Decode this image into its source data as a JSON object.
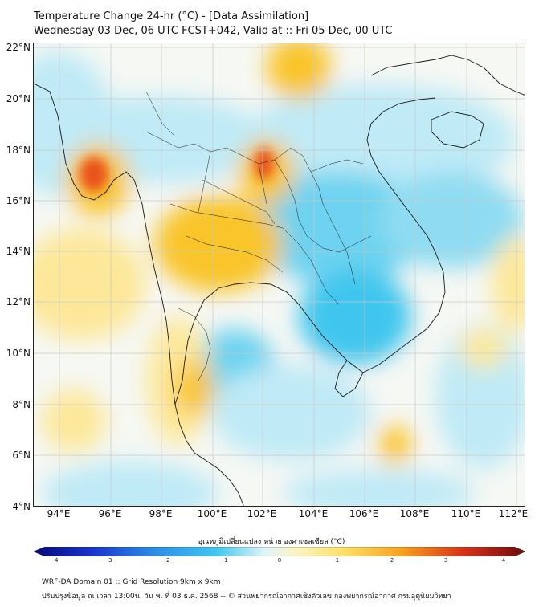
{
  "header": {
    "title_line1": "Temperature Change 24-hr (°C) - [Data Assimilation]",
    "title_line2": "Wednesday 03 Dec, 06 UTC FCST+042, Valid at :: Fri 05 Dec, 00 UTC"
  },
  "map": {
    "lat_labels": [
      "22°N",
      "20°N",
      "18°N",
      "16°N",
      "14°N",
      "12°N",
      "10°N",
      "8°N",
      "6°N",
      "4°N"
    ],
    "lon_labels": [
      "94°E",
      "96°E",
      "98°E",
      "100°E",
      "102°E",
      "104°E",
      "106°E",
      "108°E",
      "110°E",
      "112°E"
    ],
    "colors": {
      "cool_strong": "#3fc6ee",
      "cool_light": "#bfeaf6",
      "warm_light": "#fde89a",
      "warm": "#f9c52b",
      "hot": "#e9531d",
      "coast": "#1a1a1a"
    }
  },
  "colorbar": {
    "title": "อุณหภูมิเปลี่ยนแปลง หน่วย องศาเซลเซียส (°C)",
    "ticks": [
      "-4",
      "-3",
      "-2",
      "-1",
      "0",
      "1",
      "2",
      "3",
      "4"
    ],
    "range": [
      -4,
      4
    ]
  },
  "footer": {
    "line1": "WRF-DA Domain 01 :: Grid Resolution 9km x 9km",
    "line2": "ปรับปรุงข้อมูล ณ เวลา 13:00น. วัน พ. ที่ 03 ธ.ค. 2568 -- © ส่วนพยากรณ์อากาศเชิงตัวเลข กองพยากรณ์อากาศ กรมอุตุนิยมวิทยา"
  }
}
